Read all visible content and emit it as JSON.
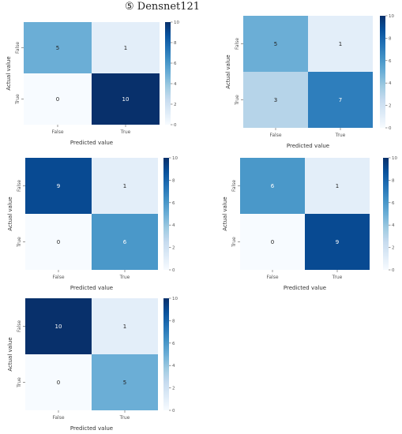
{
  "title": "⑤  Densnet121",
  "colors": {
    "low": "#f7fbff",
    "high": "#08306b",
    "tick": "#555555",
    "axis": "#333333"
  },
  "chart_data": [
    {
      "type": "heatmap",
      "xlabel": "Predicted value",
      "ylabel": "Actual value",
      "x_categories": [
        "False",
        "True"
      ],
      "y_categories": [
        "False",
        "True"
      ],
      "values": [
        [
          5,
          1
        ],
        [
          0,
          10
        ]
      ],
      "colorbar": {
        "range": [
          0,
          10
        ],
        "ticks": [
          0,
          2,
          4,
          6,
          8,
          10
        ]
      }
    },
    {
      "type": "heatmap",
      "xlabel": "Predicted value",
      "ylabel": "Actual value",
      "x_categories": [
        "False",
        "True"
      ],
      "y_categories": [
        "False",
        "True"
      ],
      "values": [
        [
          5,
          1
        ],
        [
          3,
          7
        ]
      ],
      "colorbar": {
        "range": [
          0,
          10
        ],
        "ticks": [
          0,
          2,
          4,
          6,
          8,
          10
        ]
      }
    },
    {
      "type": "heatmap",
      "xlabel": "Predicted value",
      "ylabel": "Actual value",
      "x_categories": [
        "False",
        "True"
      ],
      "y_categories": [
        "False",
        "True"
      ],
      "values": [
        [
          9,
          1
        ],
        [
          0,
          6
        ]
      ],
      "colorbar": {
        "range": [
          0,
          10
        ],
        "ticks": [
          0,
          2,
          4,
          6,
          8,
          10
        ]
      }
    },
    {
      "type": "heatmap",
      "xlabel": "Predicted value",
      "ylabel": "Actual value",
      "x_categories": [
        "False",
        "True"
      ],
      "y_categories": [
        "False",
        "True"
      ],
      "values": [
        [
          6,
          1
        ],
        [
          0,
          9
        ]
      ],
      "colorbar": {
        "range": [
          0,
          10
        ],
        "ticks": [
          0,
          2,
          4,
          6,
          8,
          10
        ]
      }
    },
    {
      "type": "heatmap",
      "xlabel": "Predicted value",
      "ylabel": "Actual value",
      "x_categories": [
        "False",
        "True"
      ],
      "y_categories": [
        "False",
        "True"
      ],
      "values": [
        [
          10,
          1
        ],
        [
          0,
          5
        ]
      ],
      "colorbar": {
        "range": [
          0,
          10
        ],
        "ticks": [
          0,
          2,
          4,
          6,
          8,
          10
        ]
      }
    }
  ]
}
